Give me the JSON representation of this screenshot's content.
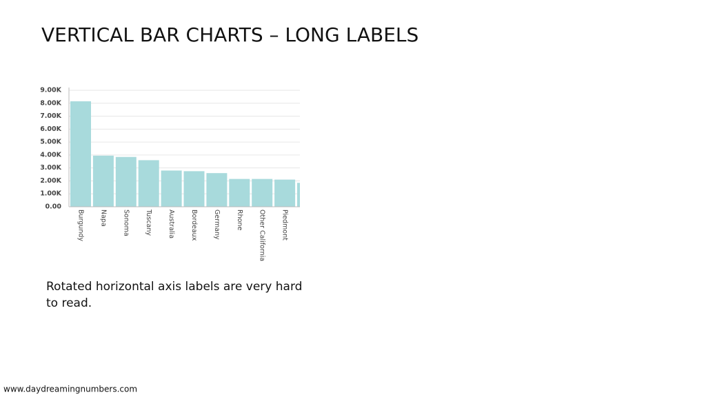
{
  "slide": {
    "title": "VERTICAL BAR CHARTS – LONG LABELS",
    "caption": [
      "Rotated horizontal axis labels are very hard",
      "to read."
    ],
    "footer": "www.daydreamingnumbers.com"
  },
  "chart_data": {
    "type": "bar",
    "categories": [
      "Burgundy",
      "Napa",
      "Sonoma",
      "Tuscany",
      "Australia",
      "Bordeaux",
      "Germany",
      "Rhone",
      "Other California",
      "Piedmont",
      null
    ],
    "values": [
      8150,
      3950,
      3850,
      3600,
      2800,
      2750,
      2600,
      2150,
      2150,
      2100,
      1850
    ],
    "color": "#a8dadc",
    "ylim": [
      0,
      9000
    ],
    "yticks": [
      {
        "value": 0,
        "label": "0.00"
      },
      {
        "value": 1000,
        "label": "1.00K"
      },
      {
        "value": 2000,
        "label": "2.00K"
      },
      {
        "value": 3000,
        "label": "3.00K"
      },
      {
        "value": 4000,
        "label": "4.00K"
      },
      {
        "value": 5000,
        "label": "5.00K"
      },
      {
        "value": 6000,
        "label": "6.00K"
      },
      {
        "value": 7000,
        "label": "7.00K"
      },
      {
        "value": 8000,
        "label": "8.00K"
      },
      {
        "value": 9000,
        "label": "9.00K"
      }
    ],
    "grid": true
  }
}
